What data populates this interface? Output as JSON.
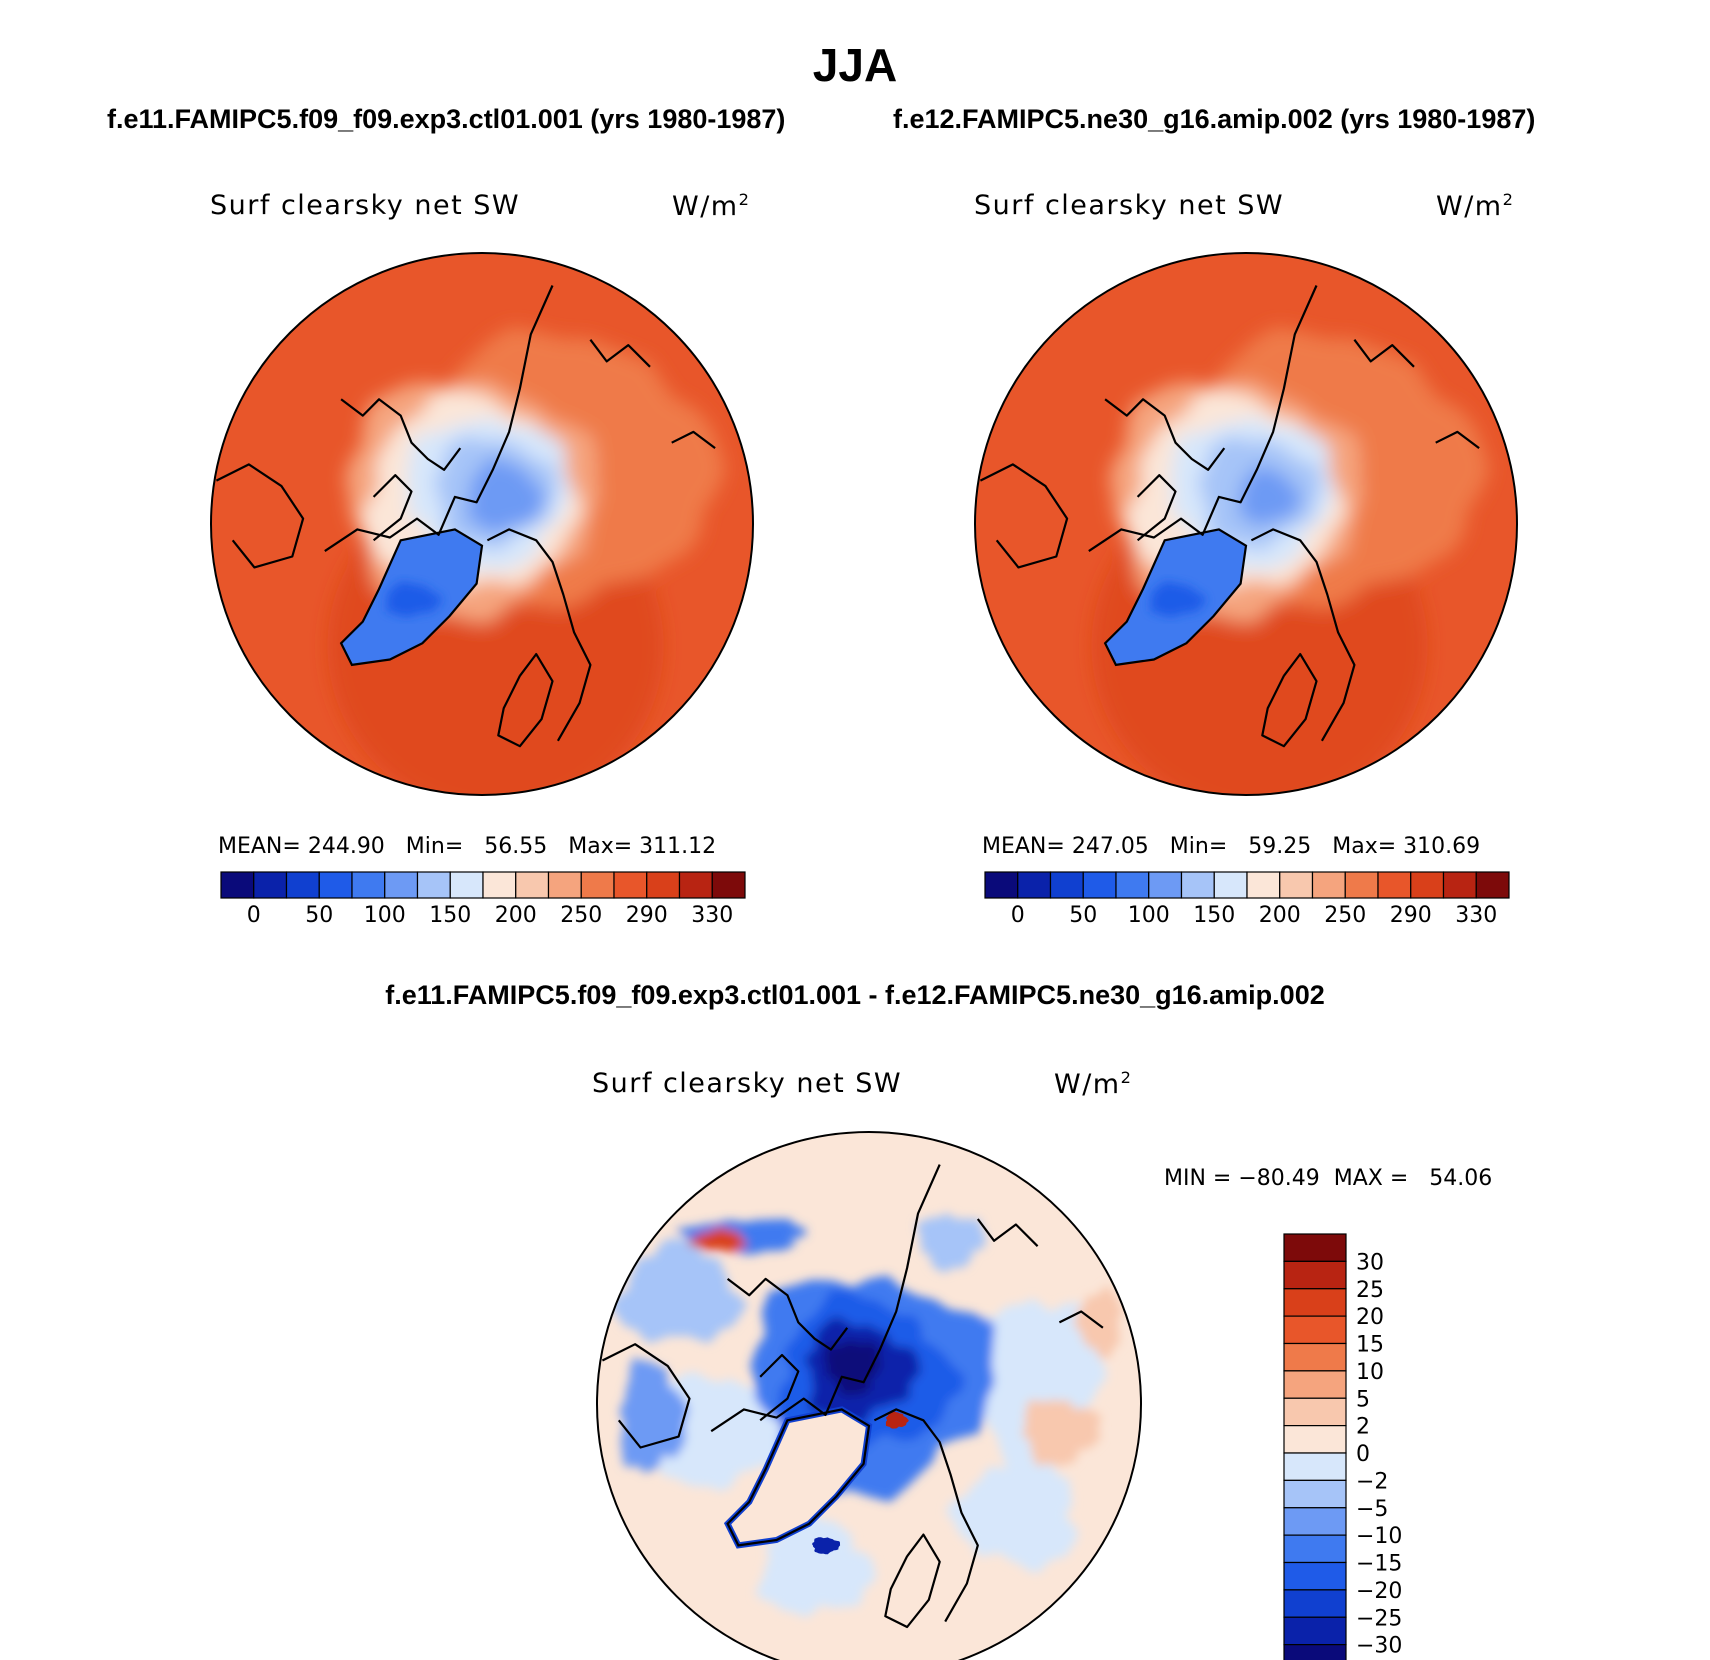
{
  "header": {
    "title": "JJA",
    "case_left": "f.e11.FAMIPC5.f09_f09.exp3.ctl01.001 (yrs 1980-1987)",
    "case_right": "f.e12.FAMIPC5.ne30_g16.amip.002 (yrs 1980-1987)",
    "diff_title": "f.e11.FAMIPC5.f09_f09.exp3.ctl01.001 - f.e12.FAMIPC5.ne30_g16.amip.002"
  },
  "panels": [
    {
      "variable": "Surf clearsky net SW",
      "units_base": "W/m",
      "units_exp": "2",
      "stats": {
        "mean_label": "MEAN=",
        "mean": "244.90",
        "min_label": "Min=",
        "min": "56.55",
        "max_label": "Max=",
        "max": "311.12"
      }
    },
    {
      "variable": "Surf clearsky net SW",
      "units_base": "W/m",
      "units_exp": "2",
      "stats": {
        "mean_label": "MEAN=",
        "mean": "247.05",
        "min_label": "Min=",
        "min": "59.25",
        "max_label": "Max=",
        "max": "310.69"
      }
    },
    {
      "variable": "Surf clearsky net SW",
      "units_base": "W/m",
      "units_exp": "2",
      "stats_text": "MIN = −80.49  MAX =   54.06"
    }
  ],
  "chart_data": [
    {
      "type": "heatmap",
      "projection": "north-polar-stereographic",
      "title": "Surf clearsky net SW",
      "colorbar": {
        "orientation": "horizontal",
        "tick_labels": [
          "0",
          "50",
          "100",
          "150",
          "200",
          "250",
          "290",
          "330"
        ],
        "colors": [
          "#0a0a7a",
          "#0a22aa",
          "#1040d0",
          "#1f5be8",
          "#3f7af0",
          "#6d9af4",
          "#a6c4f8",
          "#d7e7fb",
          "#fbe6d8",
          "#f8c8ae",
          "#f5a47e",
          "#ef7a4a",
          "#e8562a",
          "#d9401a",
          "#b82412",
          "#7d0a0a"
        ]
      },
      "stats": {
        "mean": 244.9,
        "min": 56.55,
        "max": 311.12
      }
    },
    {
      "type": "heatmap",
      "projection": "north-polar-stereographic",
      "title": "Surf clearsky net SW",
      "colorbar": {
        "orientation": "horizontal",
        "tick_labels": [
          "0",
          "50",
          "100",
          "150",
          "200",
          "250",
          "290",
          "330"
        ],
        "colors": [
          "#0a0a7a",
          "#0a22aa",
          "#1040d0",
          "#1f5be8",
          "#3f7af0",
          "#6d9af4",
          "#a6c4f8",
          "#d7e7fb",
          "#fbe6d8",
          "#f8c8ae",
          "#f5a47e",
          "#ef7a4a",
          "#e8562a",
          "#d9401a",
          "#b82412",
          "#7d0a0a"
        ]
      },
      "stats": {
        "mean": 247.05,
        "min": 59.25,
        "max": 310.69
      }
    },
    {
      "type": "heatmap",
      "projection": "north-polar-stereographic",
      "title": "Surf clearsky net SW",
      "colorbar": {
        "orientation": "vertical",
        "tick_labels": [
          "30",
          "25",
          "20",
          "15",
          "10",
          "5",
          "2",
          "0",
          "−2",
          "−5",
          "−10",
          "−15",
          "−20",
          "−25",
          "−30"
        ],
        "colors": [
          "#7d0a0a",
          "#b82412",
          "#d9401a",
          "#e8562a",
          "#ef7a4a",
          "#f5a47e",
          "#f8c8ae",
          "#fbe6d8",
          "#d7e7fb",
          "#a6c4f8",
          "#6d9af4",
          "#3f7af0",
          "#1f5be8",
          "#1040d0",
          "#0a22aa",
          "#0a0a7a"
        ]
      },
      "stats": {
        "min": -80.49,
        "max": 54.06
      }
    }
  ]
}
